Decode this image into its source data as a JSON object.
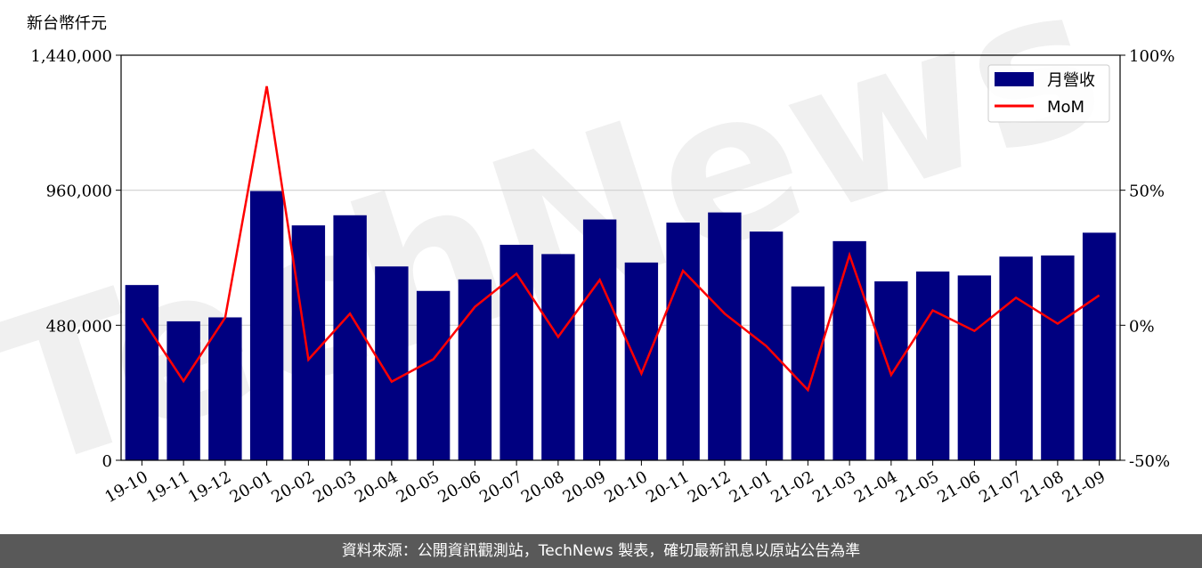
{
  "unit_label": "新台幣仟元",
  "footer_text": "資料來源：公開資訊觀測站，TechNews 製表，確切最新訊息以原站公告為準",
  "watermark_text": "TechNews",
  "chart_data": {
    "type": "bar",
    "categories": [
      "19-10",
      "19-11",
      "19-12",
      "20-01",
      "20-02",
      "20-03",
      "20-04",
      "20-05",
      "20-06",
      "20-07",
      "20-08",
      "20-09",
      "20-10",
      "20-11",
      "20-12",
      "21-01",
      "21-02",
      "21-03",
      "21-04",
      "21-05",
      "21-06",
      "21-07",
      "21-08",
      "21-09"
    ],
    "series": [
      {
        "name": "月營收",
        "type": "bar",
        "axis": "left",
        "color": "#000080",
        "values": [
          623000,
          494000,
          508000,
          957000,
          835000,
          871000,
          689000,
          602000,
          643000,
          766000,
          733000,
          856000,
          703000,
          845000,
          881000,
          813000,
          618000,
          779000,
          636000,
          671000,
          657000,
          724000,
          728000,
          809000
        ]
      },
      {
        "name": "MoM",
        "type": "line",
        "axis": "right",
        "color": "#ff0000",
        "values": [
          2.6,
          -20.7,
          2.8,
          88.5,
          -12.7,
          4.3,
          -20.9,
          -12.6,
          6.8,
          19.1,
          -4.3,
          16.8,
          -17.9,
          20.2,
          4.3,
          -7.7,
          -24.0,
          26.0,
          -18.4,
          5.5,
          -2.1,
          10.2,
          0.6,
          11.1
        ]
      }
    ],
    "y_left": {
      "ylim": [
        0,
        1440000
      ],
      "ticks": [
        0,
        480000,
        960000,
        1440000
      ],
      "tick_labels": [
        "0",
        "480,000",
        "960,000",
        "1,440,000"
      ]
    },
    "y_right": {
      "ylim": [
        -50,
        100
      ],
      "ticks": [
        -50,
        0,
        50,
        100
      ],
      "tick_labels": [
        "-50%",
        "0%",
        "50%",
        "100%"
      ]
    },
    "grid": "horizontal",
    "legend_position": "top-right"
  }
}
